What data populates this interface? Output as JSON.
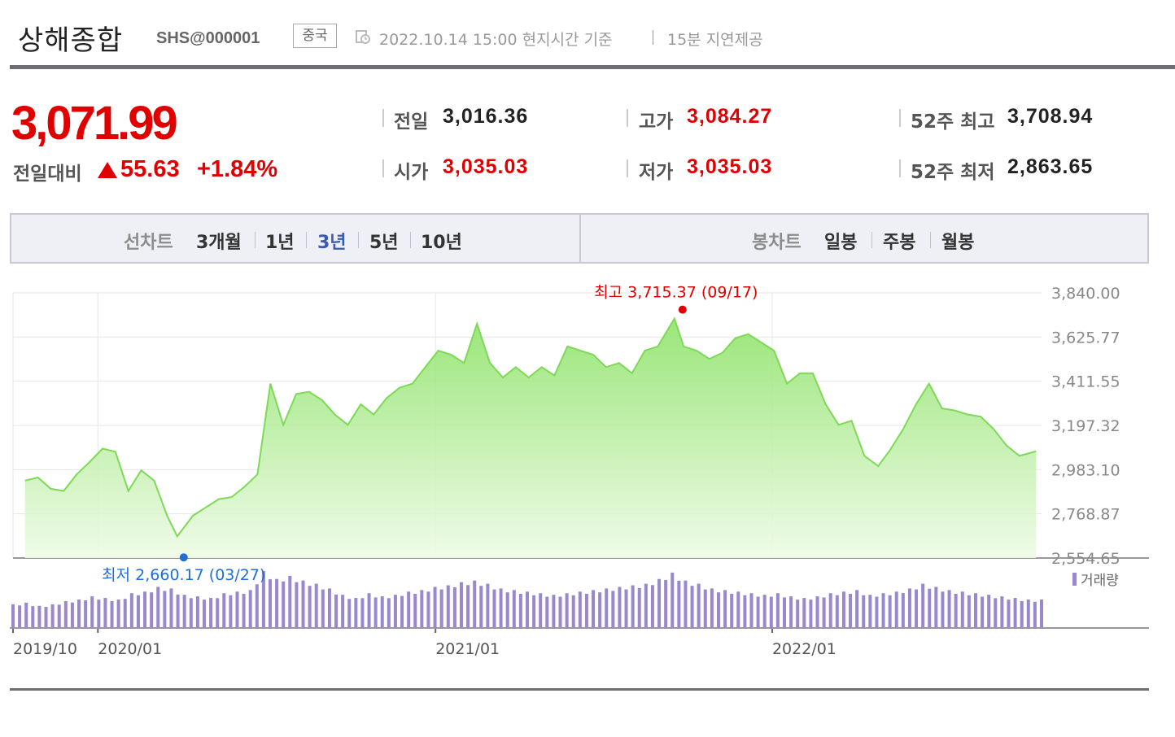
{
  "header": {
    "title": "상해종합",
    "code": "SHS@000001",
    "country": "중국",
    "timestamp": "2022.10.14 15:00 현지시간 기준",
    "delay_note": "15분 지연제공"
  },
  "quote": {
    "price": "3,071.99",
    "change_label": "전일대비",
    "change_value": "55.63",
    "change_percent": "+1.84%",
    "stats": {
      "prev_close_label": "전일",
      "prev_close": "3,016.36",
      "open_label": "시가",
      "open": "3,035.03",
      "high_label": "고가",
      "high": "3,084.27",
      "low_label": "저가",
      "low": "3,035.03",
      "w52_high_label": "52주 최고",
      "w52_high": "3,708.94",
      "w52_low_label": "52주 최저",
      "w52_low": "2,863.65"
    }
  },
  "tabs": {
    "line_chart_label": "선차트",
    "line_items": [
      "3개월",
      "1년",
      "3년",
      "5년",
      "10년"
    ],
    "active": "3년",
    "candle_chart_label": "봉차트",
    "candle_items": [
      "일봉",
      "주봉",
      "월봉"
    ]
  },
  "colors": {
    "up": "#e10000",
    "line": "#7ed957",
    "volume": "#9a88cc",
    "low_marker": "#1f6fd6",
    "active_tab": "#3a5bb0"
  },
  "chart_data": {
    "type": "area",
    "ylim": [
      2554.65,
      3840.0
    ],
    "yticks": [
      "3,840.00",
      "3,625.77",
      "3,411.55",
      "3,197.32",
      "2,983.10",
      "2,768.87",
      "2,554.65"
    ],
    "xticks": [
      "2019/10",
      "2020/01",
      "2021/01",
      "2022/01"
    ],
    "x": [
      "2019-10-14",
      "2019-10-28",
      "2019-11-11",
      "2019-11-25",
      "2019-12-09",
      "2019-12-23",
      "2020-01-06",
      "2020-01-20",
      "2020-02-03",
      "2020-02-17",
      "2020-03-02",
      "2020-03-16",
      "2020-03-27",
      "2020-04-13",
      "2020-04-27",
      "2020-05-11",
      "2020-05-25",
      "2020-06-08",
      "2020-06-22",
      "2020-07-06",
      "2020-07-20",
      "2020-08-03",
      "2020-08-17",
      "2020-08-31",
      "2020-09-14",
      "2020-09-28",
      "2020-10-12",
      "2020-10-26",
      "2020-11-09",
      "2020-11-23",
      "2020-12-07",
      "2020-12-21",
      "2021-01-04",
      "2021-01-18",
      "2021-02-01",
      "2021-02-15",
      "2021-03-01",
      "2021-03-15",
      "2021-03-29",
      "2021-04-12",
      "2021-04-26",
      "2021-05-10",
      "2021-05-24",
      "2021-06-07",
      "2021-06-21",
      "2021-07-05",
      "2021-07-19",
      "2021-08-02",
      "2021-08-16",
      "2021-08-30",
      "2021-09-17",
      "2021-09-27",
      "2021-10-11",
      "2021-10-25",
      "2021-11-08",
      "2021-11-22",
      "2021-12-06",
      "2021-12-20",
      "2022-01-03",
      "2022-01-17",
      "2022-01-31",
      "2022-02-14",
      "2022-02-28",
      "2022-03-14",
      "2022-03-28",
      "2022-04-11",
      "2022-04-26",
      "2022-05-09",
      "2022-05-23",
      "2022-06-06",
      "2022-06-20",
      "2022-07-04",
      "2022-07-18",
      "2022-08-01",
      "2022-08-15",
      "2022-08-29",
      "2022-09-12",
      "2022-09-26",
      "2022-10-14"
    ],
    "y": [
      2930,
      2945,
      2890,
      2880,
      2960,
      3020,
      3085,
      3070,
      2880,
      2980,
      2930,
      2760,
      2660,
      2760,
      2800,
      2840,
      2850,
      2900,
      2960,
      3400,
      3200,
      3350,
      3360,
      3320,
      3250,
      3200,
      3300,
      3250,
      3330,
      3380,
      3400,
      3480,
      3560,
      3540,
      3500,
      3690,
      3500,
      3430,
      3480,
      3430,
      3480,
      3440,
      3580,
      3560,
      3540,
      3480,
      3500,
      3450,
      3560,
      3580,
      3715.37,
      3580,
      3560,
      3520,
      3550,
      3620,
      3640,
      3600,
      3560,
      3400,
      3450,
      3450,
      3300,
      3200,
      3220,
      3050,
      3000,
      3080,
      3180,
      3300,
      3400,
      3280,
      3270,
      3250,
      3240,
      3180,
      3100,
      3050,
      3071.99
    ],
    "high_annotation": {
      "label": "최고 3,715.37 (09/17)",
      "value": 3715.37,
      "date": "09/17"
    },
    "low_annotation": {
      "label": "최저 2,660.17 (03/27)",
      "value": 2660.17,
      "date": "03/27"
    },
    "volume_legend": "거래량",
    "volume": [
      30,
      32,
      28,
      30,
      34,
      36,
      40,
      38,
      36,
      44,
      46,
      52,
      50,
      42,
      40,
      38,
      44,
      46,
      48,
      72,
      62,
      66,
      60,
      56,
      50,
      42,
      38,
      44,
      40,
      42,
      46,
      48,
      52,
      54,
      58,
      60,
      56,
      50,
      48,
      46,
      44,
      42,
      44,
      46,
      48,
      50,
      52,
      54,
      56,
      62,
      70,
      60,
      56,
      50,
      48,
      46,
      44,
      42,
      44,
      40,
      38,
      40,
      44,
      46,
      48,
      42,
      44,
      46,
      50,
      56,
      52,
      48,
      46,
      44,
      42,
      40,
      38,
      36,
      36
    ],
    "grid": true
  }
}
